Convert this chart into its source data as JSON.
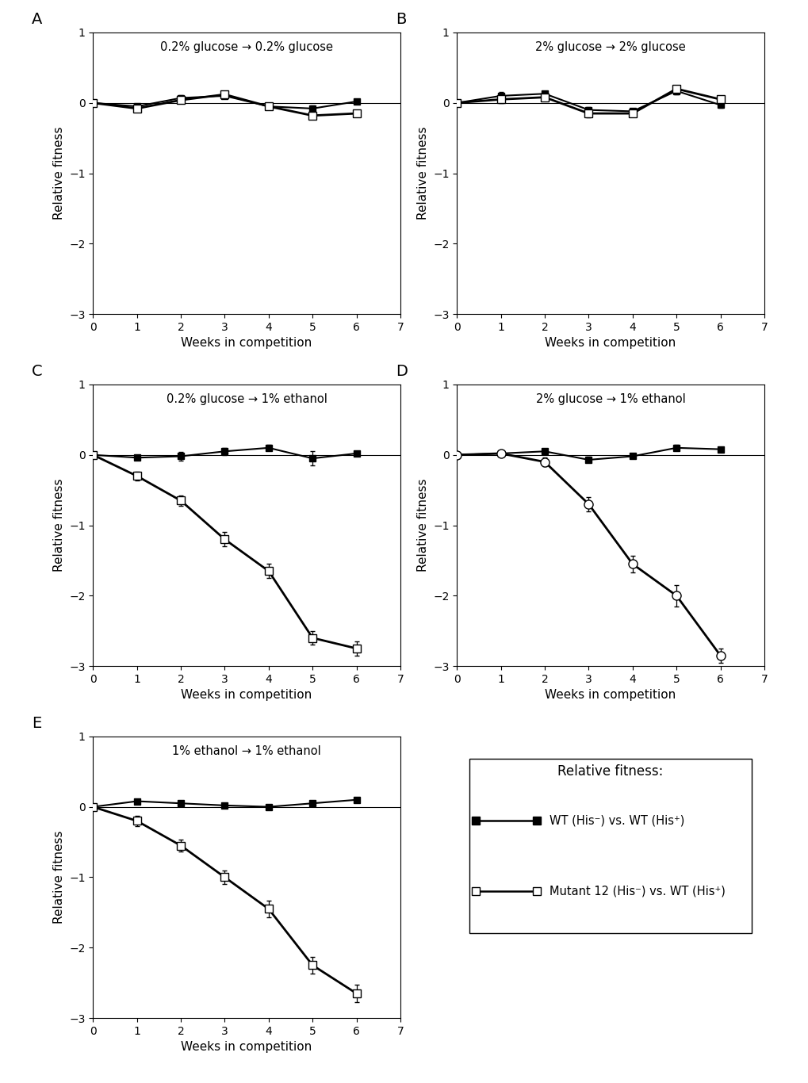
{
  "weeks": [
    0,
    1,
    2,
    3,
    4,
    5,
    6
  ],
  "panels": [
    {
      "label": "A",
      "title": "0.2% glucose → 0.2% glucose",
      "wt_y": [
        0.0,
        -0.05,
        0.07,
        0.1,
        -0.05,
        -0.08,
        0.02
      ],
      "wt_err": [
        0.0,
        0.03,
        0.04,
        0.03,
        0.03,
        0.04,
        0.03
      ],
      "mut_y": [
        0.0,
        -0.08,
        0.04,
        0.12,
        -0.05,
        -0.18,
        -0.15
      ],
      "mut_err": [
        0.0,
        0.04,
        0.04,
        0.05,
        0.04,
        0.05,
        0.04
      ],
      "mut_marker": "square_open"
    },
    {
      "label": "B",
      "title": "2% glucose → 2% glucose",
      "wt_y": [
        0.0,
        0.1,
        0.13,
        -0.1,
        -0.12,
        0.17,
        -0.03
      ],
      "wt_err": [
        0.0,
        0.05,
        0.04,
        0.04,
        0.04,
        0.05,
        0.04
      ],
      "mut_y": [
        0.0,
        0.05,
        0.08,
        -0.15,
        -0.15,
        0.2,
        0.05
      ],
      "mut_err": [
        0.0,
        0.05,
        0.04,
        0.05,
        0.04,
        0.05,
        0.04
      ],
      "mut_marker": "square_open"
    },
    {
      "label": "C",
      "title": "0.2% glucose → 1% ethanol",
      "wt_y": [
        0.0,
        -0.04,
        -0.02,
        0.05,
        0.1,
        -0.05,
        0.02
      ],
      "wt_err": [
        0.0,
        0.03,
        0.06,
        0.05,
        0.04,
        0.1,
        0.03
      ],
      "mut_y": [
        0.0,
        -0.3,
        -0.65,
        -1.2,
        -1.65,
        -2.6,
        -2.75
      ],
      "mut_err": [
        0.0,
        0.06,
        0.07,
        0.1,
        0.1,
        0.1,
        0.1
      ],
      "mut_marker": "square_open"
    },
    {
      "label": "D",
      "title": "2% glucose → 1% ethanol",
      "wt_y": [
        0.0,
        0.02,
        0.05,
        -0.07,
        -0.02,
        0.1,
        0.08
      ],
      "wt_err": [
        0.0,
        0.02,
        0.03,
        0.04,
        0.03,
        0.04,
        0.03
      ],
      "mut_y": [
        0.0,
        0.02,
        -0.1,
        -0.7,
        -1.55,
        -2.0,
        -2.85
      ],
      "mut_err": [
        0.0,
        0.04,
        0.06,
        0.1,
        0.12,
        0.15,
        0.1
      ],
      "mut_marker": "circle_open"
    },
    {
      "label": "E",
      "title": "1% ethanol → 1% ethanol",
      "wt_y": [
        0.0,
        0.08,
        0.05,
        0.02,
        0.0,
        0.05,
        0.1
      ],
      "wt_err": [
        0.0,
        0.03,
        0.03,
        0.03,
        0.03,
        0.03,
        0.03
      ],
      "mut_y": [
        0.0,
        -0.2,
        -0.55,
        -1.0,
        -1.45,
        -2.25,
        -2.65
      ],
      "mut_err": [
        0.0,
        0.07,
        0.08,
        0.1,
        0.12,
        0.12,
        0.12
      ],
      "mut_marker": "square_open"
    }
  ],
  "legend_title": "Relative fitness:",
  "legend_wt_label": "WT (His⁻) vs. WT (His⁺)",
  "legend_mut_label": "Mutant 12 (His⁻) vs. WT (His⁺)",
  "xlabel": "Weeks in competition",
  "ylabel": "Relative fitness",
  "ylim": [
    -3.0,
    1.0
  ],
  "xlim": [
    0,
    7
  ],
  "yticks": [
    -3,
    -2,
    -1,
    0,
    1
  ],
  "xticks": [
    0,
    1,
    2,
    3,
    4,
    5,
    6,
    7
  ]
}
